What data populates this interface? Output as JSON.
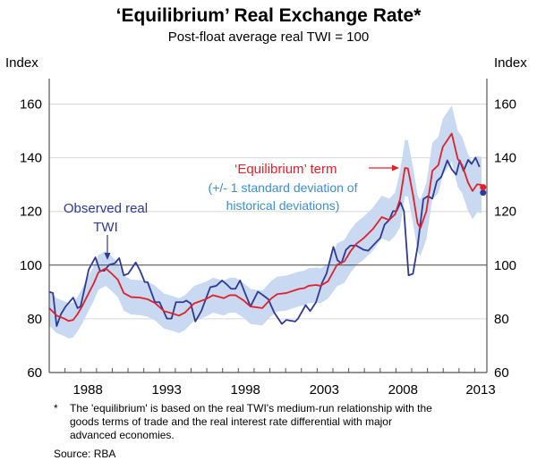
{
  "chart_data": {
    "type": "line",
    "title": "‘Equilibrium’ Real Exchange Rate*",
    "subtitle": "Post-float average real TWI = 100",
    "ylabel_left": "Index",
    "ylabel_right": "Index",
    "xlim": [
      1986.0,
      2013.77
    ],
    "ylim": [
      60,
      160
    ],
    "yticks": [
      60,
      80,
      100,
      120,
      140,
      160
    ],
    "ytick_labels": [
      "60",
      "80",
      "100",
      "120",
      "140",
      "160"
    ],
    "xtick_labels": [
      {
        "label": "1988",
        "year": 1988
      },
      {
        "label": "1993",
        "year": 1993
      },
      {
        "label": "1998",
        "year": 1998
      },
      {
        "label": "2003",
        "year": 2003
      },
      {
        "label": "2008",
        "year": 2008
      },
      {
        "label": "2013",
        "year": 2013
      }
    ],
    "grid": true,
    "reference_line": 100,
    "colors": {
      "observed": "#2e3a94",
      "equilibrium": "#e3202a",
      "band": "#c8d9f1",
      "band_label": "#3b8fd2",
      "grid": "#d8d8d8",
      "axis": "#555555"
    },
    "series": [
      {
        "name": "Observed real TWI",
        "points": [
          [
            1986.0,
            90.1
          ],
          [
            1986.24,
            89.6
          ],
          [
            1986.47,
            77.3
          ],
          [
            1986.75,
            81.8
          ],
          [
            1987.04,
            84.6
          ],
          [
            1987.52,
            87.9
          ],
          [
            1987.8,
            84.0
          ],
          [
            1987.99,
            84.6
          ],
          [
            1988.51,
            98.4
          ],
          [
            1988.93,
            102.9
          ],
          [
            1989.22,
            97.9
          ],
          [
            1989.5,
            97.9
          ],
          [
            1989.79,
            100.1
          ],
          [
            1990.16,
            100.7
          ],
          [
            1990.44,
            102.6
          ],
          [
            1990.73,
            96.2
          ],
          [
            1991.01,
            96.8
          ],
          [
            1991.49,
            101.0
          ],
          [
            1991.77,
            97.9
          ],
          [
            1992.06,
            93.7
          ],
          [
            1992.24,
            93.7
          ],
          [
            1992.71,
            86.2
          ],
          [
            1993.0,
            86.2
          ],
          [
            1993.47,
            80.1
          ],
          [
            1993.76,
            80.1
          ],
          [
            1994.04,
            86.2
          ],
          [
            1994.51,
            86.2
          ],
          [
            1994.7,
            86.8
          ],
          [
            1994.98,
            85.7
          ],
          [
            1995.27,
            79.0
          ],
          [
            1995.65,
            82.9
          ],
          [
            1996.22,
            91.8
          ],
          [
            1996.6,
            92.3
          ],
          [
            1996.97,
            94.3
          ],
          [
            1997.25,
            92.9
          ],
          [
            1997.54,
            91.2
          ],
          [
            1997.82,
            91.2
          ],
          [
            1998.11,
            94.3
          ],
          [
            1998.39,
            90.1
          ],
          [
            1998.77,
            84.6
          ],
          [
            1999.24,
            90.1
          ],
          [
            1999.52,
            89.0
          ],
          [
            1999.9,
            87.3
          ],
          [
            2000.28,
            82.3
          ],
          [
            2000.76,
            78.1
          ],
          [
            2001.04,
            79.6
          ],
          [
            2001.61,
            79.0
          ],
          [
            2001.79,
            80.1
          ],
          [
            2002.27,
            85.1
          ],
          [
            2002.56,
            82.9
          ],
          [
            2002.93,
            86.2
          ],
          [
            2003.31,
            93.4
          ],
          [
            2003.59,
            96.8
          ],
          [
            2004.03,
            106.8
          ],
          [
            2004.29,
            101.8
          ],
          [
            2004.54,
            100.7
          ],
          [
            2004.83,
            105.7
          ],
          [
            2005.11,
            107.3
          ],
          [
            2005.48,
            107.3
          ],
          [
            2005.96,
            105.7
          ],
          [
            2006.24,
            105.4
          ],
          [
            2006.72,
            108.4
          ],
          [
            2007.0,
            110.1
          ],
          [
            2007.28,
            115.1
          ],
          [
            2007.57,
            116.8
          ],
          [
            2007.81,
            120.1
          ],
          [
            2008.04,
            120.1
          ],
          [
            2008.29,
            123.4
          ],
          [
            2008.51,
            120.1
          ],
          [
            2008.8,
            96.2
          ],
          [
            2009.08,
            96.8
          ],
          [
            2009.37,
            106.8
          ],
          [
            2009.74,
            124.6
          ],
          [
            2010.02,
            125.7
          ],
          [
            2010.31,
            124.8
          ],
          [
            2010.59,
            131.2
          ],
          [
            2010.88,
            132.9
          ],
          [
            2011.26,
            139.0
          ],
          [
            2011.54,
            135.7
          ],
          [
            2011.82,
            133.7
          ],
          [
            2012.05,
            139.0
          ],
          [
            2012.29,
            135.1
          ],
          [
            2012.58,
            139.2
          ],
          [
            2012.8,
            137.7
          ],
          [
            2013.05,
            140.1
          ],
          [
            2013.3,
            136.6
          ]
        ],
        "latest_point": [
          2013.53,
          127
        ]
      },
      {
        "name": "‘Equilibrium’ term",
        "points": [
          [
            1986.0,
            84.0
          ],
          [
            1986.47,
            81.2
          ],
          [
            1986.95,
            80.1
          ],
          [
            1987.23,
            79.2
          ],
          [
            1987.52,
            79.6
          ],
          [
            1987.8,
            81.8
          ],
          [
            1988.08,
            84.6
          ],
          [
            1988.55,
            90.1
          ],
          [
            1988.84,
            93.4
          ],
          [
            1989.12,
            97.3
          ],
          [
            1989.59,
            98.8
          ],
          [
            1989.97,
            96.8
          ],
          [
            1990.35,
            94.6
          ],
          [
            1990.73,
            89.6
          ],
          [
            1991.2,
            88.1
          ],
          [
            1991.77,
            87.9
          ],
          [
            1992.24,
            87.3
          ],
          [
            1992.71,
            85.9
          ],
          [
            1993.28,
            82.9
          ],
          [
            1993.76,
            82.1
          ],
          [
            1994.23,
            81.2
          ],
          [
            1994.61,
            82.3
          ],
          [
            1995.18,
            85.7
          ],
          [
            1995.93,
            87.3
          ],
          [
            1996.4,
            88.8
          ],
          [
            1997.07,
            87.7
          ],
          [
            1997.45,
            88.8
          ],
          [
            1997.82,
            88.8
          ],
          [
            1998.3,
            87.0
          ],
          [
            1998.77,
            84.6
          ],
          [
            1999.52,
            84.0
          ],
          [
            2000.09,
            87.6
          ],
          [
            2000.47,
            89.2
          ],
          [
            2001.04,
            89.6
          ],
          [
            2001.61,
            90.7
          ],
          [
            2001.89,
            91.2
          ],
          [
            2002.17,
            91.4
          ],
          [
            2002.46,
            92.3
          ],
          [
            2002.93,
            92.6
          ],
          [
            2003.21,
            92.3
          ],
          [
            2003.69,
            94.0
          ],
          [
            2004.26,
            100.1
          ],
          [
            2004.73,
            101.4
          ],
          [
            2005.11,
            105.1
          ],
          [
            2005.48,
            107.9
          ],
          [
            2005.96,
            110.1
          ],
          [
            2006.53,
            113.4
          ],
          [
            2007.1,
            117.9
          ],
          [
            2007.57,
            116.8
          ],
          [
            2007.95,
            119.0
          ],
          [
            2008.26,
            124.6
          ],
          [
            2008.57,
            136.2
          ],
          [
            2008.76,
            136.0
          ],
          [
            2009.08,
            126.2
          ],
          [
            2009.37,
            115.7
          ],
          [
            2009.55,
            113.8
          ],
          [
            2009.93,
            120.1
          ],
          [
            2010.31,
            135.1
          ],
          [
            2010.69,
            137.3
          ],
          [
            2010.97,
            144.0
          ],
          [
            2011.54,
            149.0
          ],
          [
            2011.92,
            139.6
          ],
          [
            2012.2,
            137.3
          ],
          [
            2012.58,
            130.7
          ],
          [
            2012.86,
            127.6
          ],
          [
            2013.15,
            130.1
          ],
          [
            2013.43,
            129.9
          ]
        ],
        "std_dev": [
          6.5,
          6.5,
          6.5,
          6.5,
          6.5,
          6.5,
          6.5,
          6.5,
          6.5,
          6.5,
          6.5,
          6.5,
          6.5,
          6.5,
          6.5,
          6.5,
          6.5,
          6.5,
          6.5,
          6.5,
          6.5,
          6.5,
          6.5,
          6.5,
          6.5,
          6.5,
          6.5,
          6.5,
          6.5,
          6.5,
          6.5,
          6.5,
          6.5,
          6.5,
          6.5,
          6.5,
          6.5,
          6.5,
          6.5,
          6.5,
          6.5,
          8,
          8,
          8,
          8,
          8,
          8,
          8,
          8,
          8,
          10.5,
          10.5,
          10.5,
          10.5,
          10.5,
          10.5,
          10.5,
          10.5,
          10.5,
          10.5,
          10.5,
          10.5,
          10.5,
          10.5,
          10.5,
          10.5,
          10.5
        ],
        "latest_point": [
          2013.53,
          129
        ]
      }
    ],
    "annotations": {
      "equilibrium_label": "‘Equilibrium’ term",
      "band_label_line1": "(+/- 1 standard deviation of",
      "band_label_line2": "historical deviations)",
      "observed_label_line1": "Observed real",
      "observed_label_line2": "TWI"
    }
  },
  "footnote": {
    "marker": "*",
    "lines": [
      "The 'equilibrium' is based on the real TWI's medium-run relationship with the",
      "goods terms of trade and the real interest rate differential with major",
      "advanced economies."
    ],
    "source": "Source: RBA"
  }
}
